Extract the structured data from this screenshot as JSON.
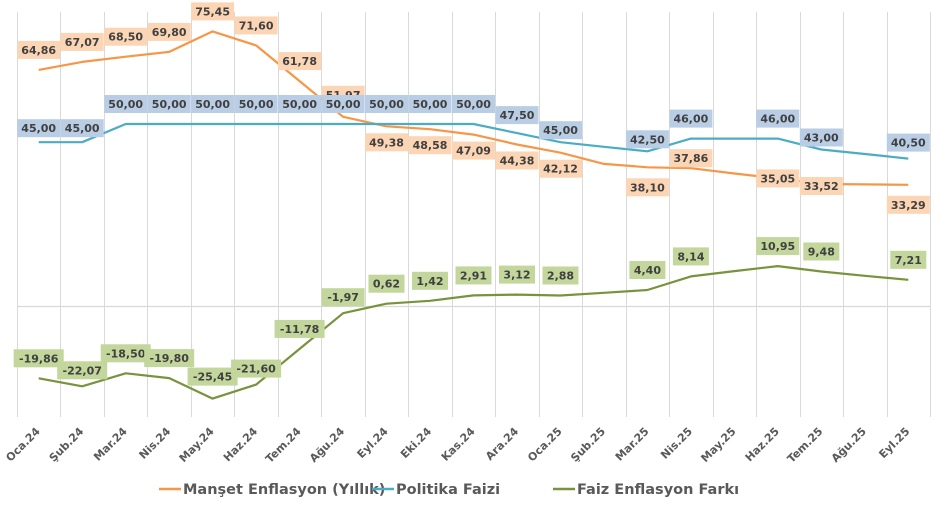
{
  "chart_data": {
    "type": "line",
    "title": "",
    "xlabel": "",
    "ylabel": "",
    "ylim": [
      -30,
      80
    ],
    "grid": {
      "vertical": true,
      "horizontal_zero_line": true
    },
    "legend_position": "bottom",
    "categories": [
      "Oca.24",
      "Şub.24",
      "Mar.24",
      "Nis.24",
      "May.24",
      "Haz.24",
      "Tem.24",
      "Ağu.24",
      "Eyl.24",
      "Eki.24",
      "Kas.24",
      "Ara.24",
      "Oca.25",
      "Şub.25",
      "Mar.25",
      "Nis.25",
      "May.25",
      "Haz.25",
      "Tem.25",
      "Ağu.25",
      "Eyl.25"
    ],
    "series": [
      {
        "name": "Manşet Enflasyon (Yıllık)",
        "color": "#F79646",
        "label_bg": "#FCD5B5",
        "values": [
          64.86,
          67.07,
          68.5,
          69.8,
          75.45,
          71.6,
          61.78,
          51.97,
          49.38,
          48.58,
          47.09,
          44.38,
          42.12,
          39.05,
          38.1,
          37.86,
          36.4,
          35.05,
          33.52,
          33.4,
          33.29
        ],
        "labels": [
          "64,86",
          "67,07",
          "68,50",
          "69,80",
          "75,45",
          "71,60",
          "61,78",
          "51,97",
          "49,38",
          "48,58",
          "47,09",
          "44,38",
          "42,12",
          "",
          "38,10",
          "37,86",
          "",
          "35,05",
          "33,52",
          "",
          "33,29"
        ]
      },
      {
        "name": "Politika Faizi",
        "color": "#4BACC6",
        "label_bg": "#B9CDE5",
        "values": [
          45.0,
          45.0,
          50.0,
          50.0,
          50.0,
          50.0,
          50.0,
          50.0,
          50.0,
          50.0,
          50.0,
          47.5,
          45.0,
          43.75,
          42.5,
          46.0,
          46.0,
          46.0,
          43.0,
          41.75,
          40.5
        ],
        "labels": [
          "45,00",
          "45,00",
          "50,00",
          "50,00",
          "50,00",
          "50,00",
          "50,00",
          "50,00",
          "50,00",
          "50,00",
          "50,00",
          "47,50",
          "45,00",
          "",
          "42,50",
          "46,00",
          "",
          "46,00",
          "43,00",
          "",
          "40,50"
        ]
      },
      {
        "name": "Faiz Enflasyon Farkı",
        "color": "#77933C",
        "label_bg": "#C3D69B",
        "values": [
          -19.86,
          -22.07,
          -18.5,
          -19.8,
          -25.45,
          -21.6,
          -11.78,
          -1.97,
          0.62,
          1.42,
          2.91,
          3.12,
          2.88,
          3.64,
          4.4,
          8.14,
          9.6,
          10.95,
          9.48,
          8.3,
          7.21
        ],
        "labels": [
          "-19,86",
          "-22,07",
          "-18,50",
          "-19,80",
          "-25,45",
          "-21,60",
          "-11,78",
          "-1,97",
          "0,62",
          "1,42",
          "2,91",
          "3,12",
          "2,88",
          "",
          "4,40",
          "8,14",
          "",
          "10,95",
          "9,48",
          "",
          "7,21"
        ]
      }
    ]
  }
}
